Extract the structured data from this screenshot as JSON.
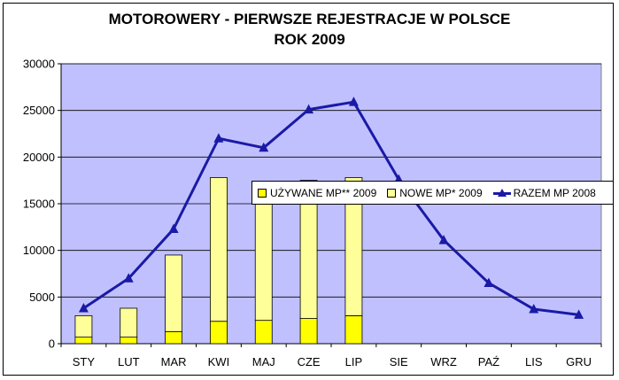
{
  "chart_data": {
    "type": "bar",
    "title": "MOTOROWERY - PIERWSZE REJESTRACJE W POLSCE",
    "subtitle": "ROK 2009",
    "categories": [
      "STY",
      "LUT",
      "MAR",
      "KWI",
      "MAJ",
      "CZE",
      "LIP",
      "SIE",
      "WRZ",
      "PAŹ",
      "LIS",
      "GRU"
    ],
    "ylim": [
      0,
      30000
    ],
    "yticks": [
      0,
      5000,
      10000,
      15000,
      20000,
      25000,
      30000
    ],
    "grid": true,
    "legend_position": "right",
    "series": [
      {
        "name": "UŻYWANE MP** 2009",
        "type": "stacked-bar",
        "color": "#ffff00",
        "values": [
          700,
          700,
          1300,
          2400,
          2500,
          2700,
          3000,
          null,
          null,
          null,
          null,
          null
        ]
      },
      {
        "name": "NOWE MP* 2009",
        "type": "stacked-bar",
        "color": "#ffff99",
        "values": [
          2300,
          3100,
          8200,
          15400,
          14900,
          14800,
          14800,
          null,
          null,
          null,
          null,
          null
        ]
      },
      {
        "name": "RAZEM MP 2008",
        "type": "line",
        "color": "#1a1aa6",
        "values": [
          3800,
          7000,
          12300,
          22000,
          21000,
          25100,
          25900,
          17600,
          11100,
          6500,
          3700,
          3100
        ]
      }
    ]
  }
}
